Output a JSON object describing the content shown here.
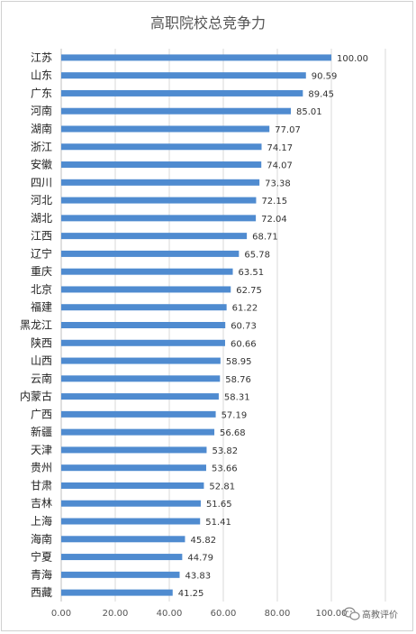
{
  "chart_data": {
    "type": "bar",
    "orientation": "horizontal",
    "title": "高职院校总竞争力",
    "xlabel": "",
    "ylabel": "",
    "xlim": [
      0,
      120
    ],
    "x_ticks": [
      "0.00",
      "20.00",
      "40.00",
      "60.00",
      "80.00",
      "100.00"
    ],
    "grid": "vertical",
    "bar_color": "#4f8bd0",
    "categories": [
      "江苏",
      "山东",
      "广东",
      "河南",
      "湖南",
      "浙江",
      "安徽",
      "四川",
      "河北",
      "湖北",
      "江西",
      "辽宁",
      "重庆",
      "北京",
      "福建",
      "黑龙江",
      "陕西",
      "山西",
      "云南",
      "内蒙古",
      "广西",
      "新疆",
      "天津",
      "贵州",
      "甘肃",
      "吉林",
      "上海",
      "海南",
      "宁夏",
      "青海",
      "西藏"
    ],
    "values": [
      100.0,
      90.59,
      89.45,
      85.01,
      77.07,
      74.17,
      74.07,
      73.38,
      72.15,
      72.04,
      68.71,
      65.78,
      63.51,
      62.75,
      61.22,
      60.73,
      60.66,
      58.95,
      58.76,
      58.31,
      57.19,
      56.68,
      53.82,
      53.66,
      52.81,
      51.65,
      51.41,
      45.82,
      44.79,
      43.83,
      41.25
    ],
    "value_labels": [
      "100.00",
      "90.59",
      "89.45",
      "85.01",
      "77.07",
      "74.17",
      "74.07",
      "73.38",
      "72.15",
      "72.04",
      "68.71",
      "65.78",
      "63.51",
      "62.75",
      "61.22",
      "60.73",
      "60.66",
      "58.95",
      "58.76",
      "58.31",
      "57.19",
      "56.68",
      "53.82",
      "53.66",
      "52.81",
      "51.65",
      "51.41",
      "45.82",
      "44.79",
      "43.83",
      "41.25"
    ]
  },
  "watermark": {
    "icon": "wechat-icon",
    "text": "高教评价"
  }
}
